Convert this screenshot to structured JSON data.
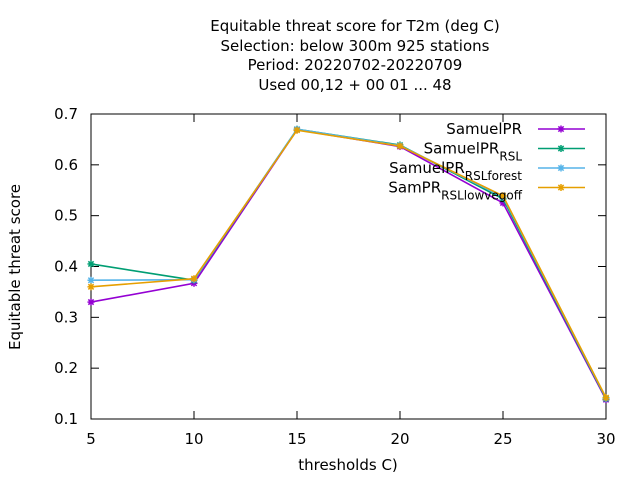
{
  "chart_data": {
    "type": "line",
    "title_lines": [
      "Equitable threat score  for T2m (deg C)",
      "Selection: below 300m    925 stations",
      "Period: 20220702-20220709",
      "Used  00,12  + 00 01 ... 48"
    ],
    "xlabel": "thresholds C)",
    "ylabel": "Equitable threat score",
    "x": [
      5,
      10,
      15,
      20,
      25,
      30
    ],
    "xlim": [
      5,
      30
    ],
    "ylim": [
      0.1,
      0.7
    ],
    "x_ticks": [
      "5",
      "10",
      "15",
      "20",
      "25",
      "30"
    ],
    "y_ticks": [
      "0.1",
      "0.2",
      "0.3",
      "0.4",
      "0.5",
      "0.6",
      "0.7"
    ],
    "grid": false,
    "legend_position": "top-right",
    "series": [
      {
        "name": "SamuelPR",
        "color": "#9400d3",
        "values": [
          0.33,
          0.367,
          0.669,
          0.636,
          0.525,
          0.138
        ]
      },
      {
        "name": "SamuelPR_RSL",
        "color": "#009e73",
        "values": [
          0.405,
          0.373,
          0.67,
          0.639,
          0.533,
          0.14
        ]
      },
      {
        "name": "SamuelPR_RSL_forest",
        "color": "#56b4e9",
        "values": [
          0.373,
          0.374,
          0.67,
          0.638,
          0.537,
          0.141
        ]
      },
      {
        "name": "SamPR_RSL_lowvegoff",
        "color": "#e69f00",
        "values": [
          0.36,
          0.376,
          0.668,
          0.637,
          0.539,
          0.142
        ]
      }
    ]
  }
}
